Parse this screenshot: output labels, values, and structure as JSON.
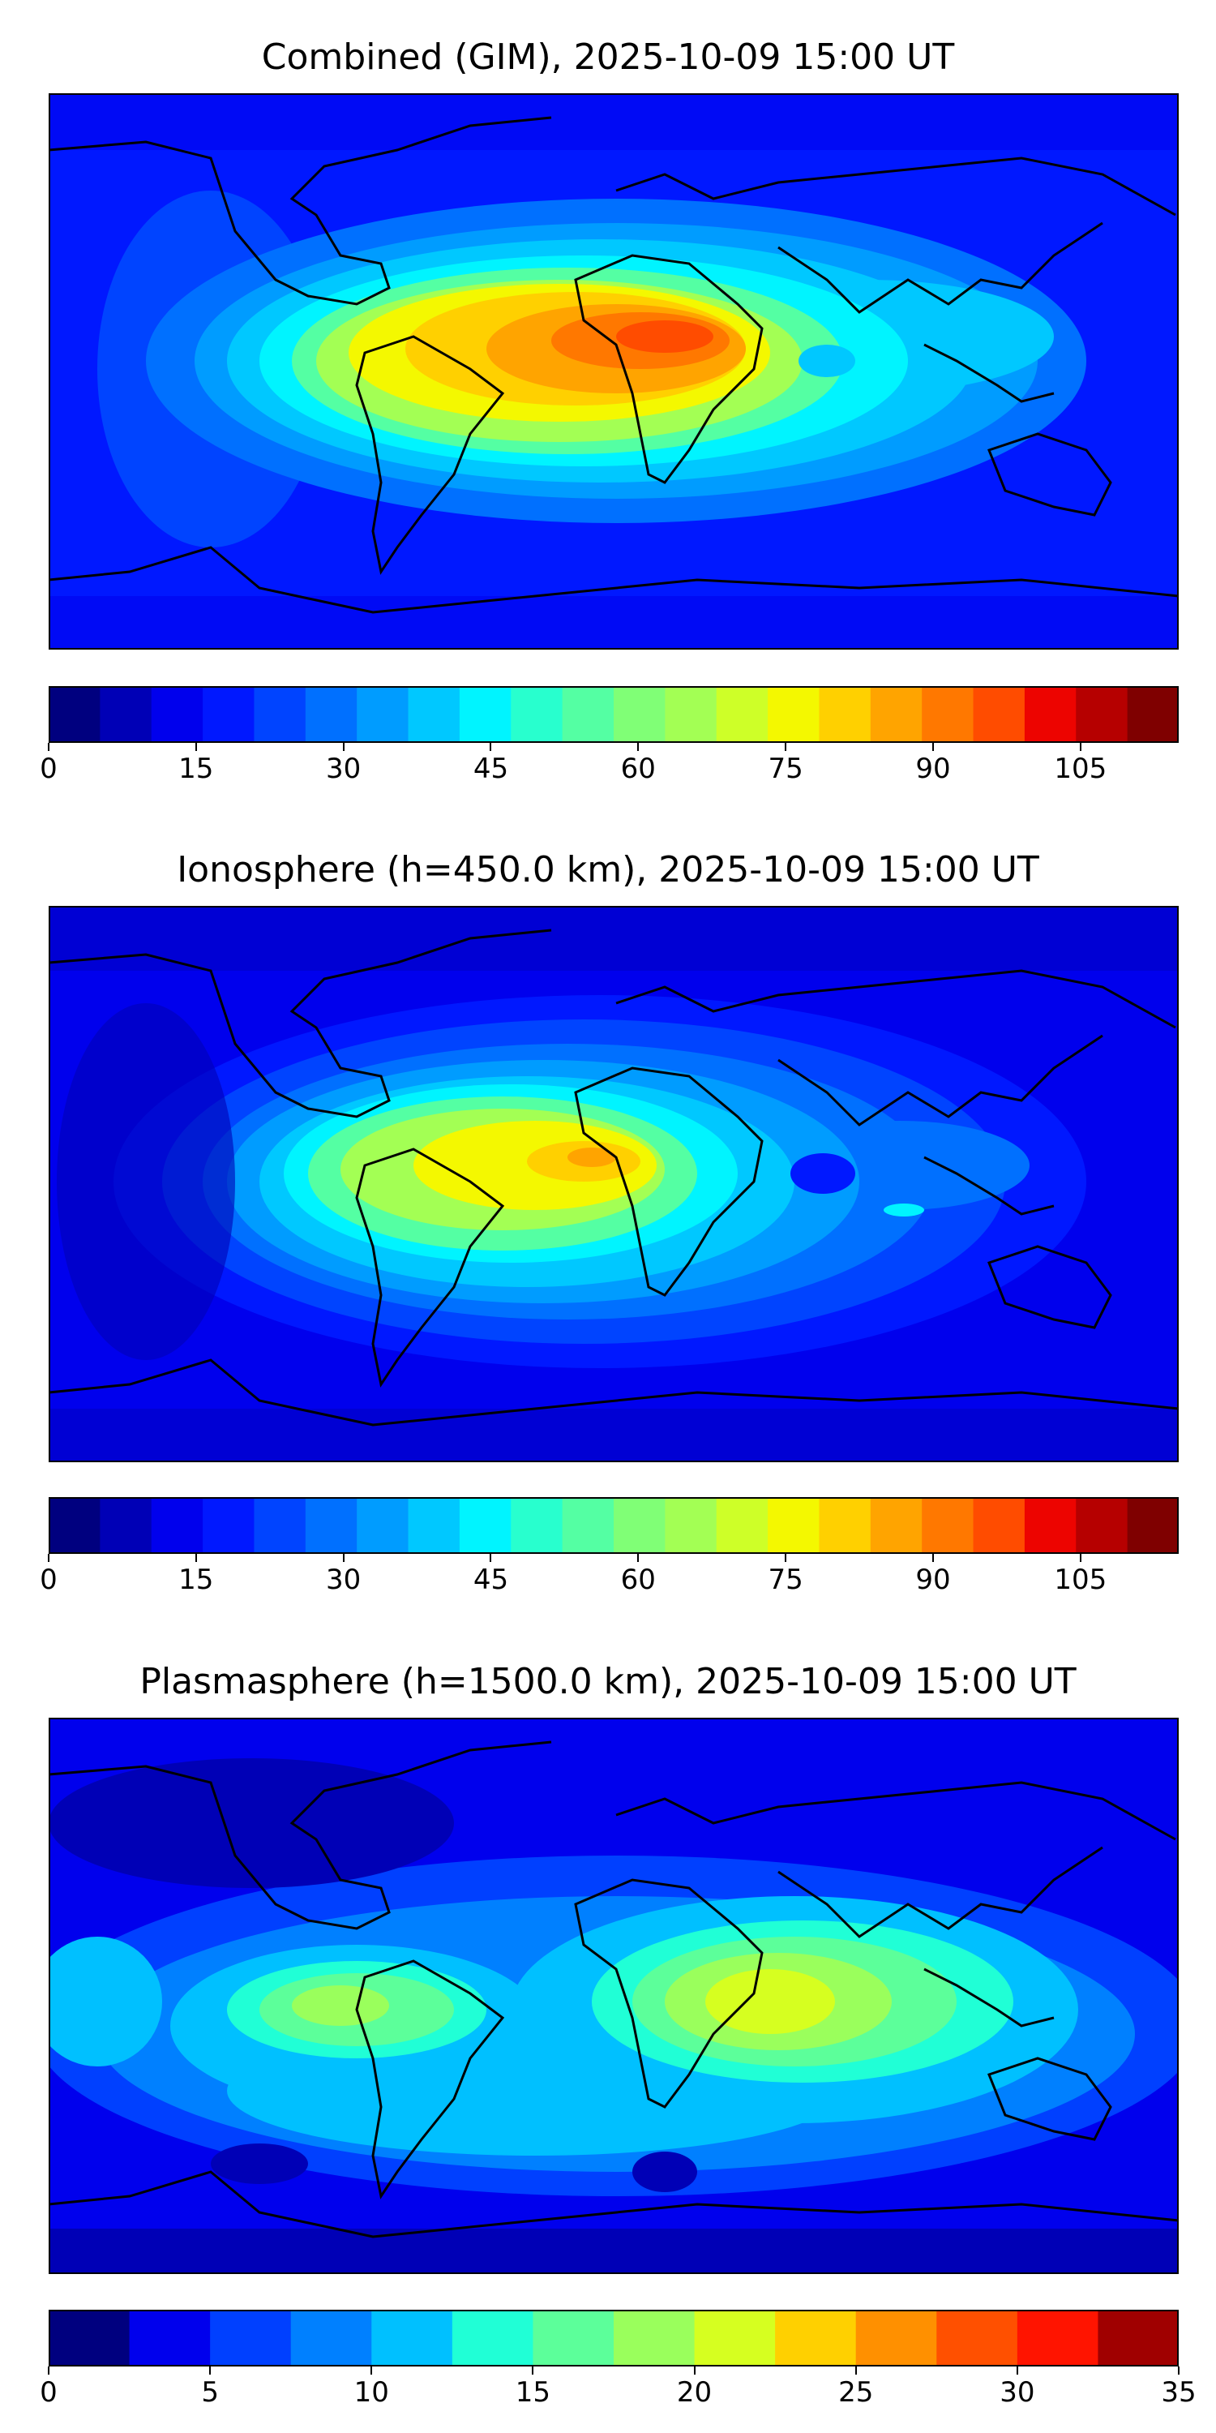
{
  "panels": [
    {
      "id": "combined",
      "title": "Combined (GIM), 2025-10-09 15:00 UT",
      "colorbar": {
        "min": 0,
        "max": 115,
        "step": 5,
        "ticks": [
          "0",
          "15",
          "30",
          "45",
          "60",
          "75",
          "90",
          "105"
        ],
        "tick_values": [
          0,
          15,
          30,
          45,
          60,
          75,
          90,
          105
        ]
      }
    },
    {
      "id": "ionosphere",
      "title": "Ionosphere  (h=450.0 km), 2025-10-09 15:00 UT",
      "colorbar": {
        "min": 0,
        "max": 115,
        "step": 5,
        "ticks": [
          "0",
          "15",
          "30",
          "45",
          "60",
          "75",
          "90",
          "105"
        ],
        "tick_values": [
          0,
          15,
          30,
          45,
          60,
          75,
          90,
          105
        ]
      }
    },
    {
      "id": "plasmasphere",
      "title": "Plasmasphere (h=1500.0 km), 2025-10-09 15:00 UT",
      "colorbar": {
        "min": 0,
        "max": 35,
        "step": 2.5,
        "ticks": [
          "0",
          "5",
          "10",
          "15",
          "20",
          "25",
          "30",
          "35"
        ],
        "tick_values": [
          0,
          5,
          10,
          15,
          20,
          25,
          30,
          35
        ]
      }
    }
  ],
  "colors": {
    "jet_combined": [
      "#00007f",
      "#0000b6",
      "#0000ed",
      "#0018ff",
      "#0044ff",
      "#0070ff",
      "#009cff",
      "#00c8ff",
      "#00f4ff",
      "#28ffce",
      "#54ffa3",
      "#80ff76",
      "#a3ff54",
      "#ceff28",
      "#f4f800",
      "#ffd000",
      "#ffa400",
      "#ff7800",
      "#ff4c00",
      "#ed0400",
      "#b60000",
      "#7f0000"
    ],
    "jet_plasma": [
      "#00007f",
      "#0000ed",
      "#0040ff",
      "#0080ff",
      "#00c0ff",
      "#20ffd6",
      "#5cff9a",
      "#9aff5c",
      "#d6ff20",
      "#ffd000",
      "#ff9000",
      "#ff5000",
      "#ff1400",
      "#a00000"
    ],
    "coastline": "#000000",
    "frame": "#000000"
  }
}
